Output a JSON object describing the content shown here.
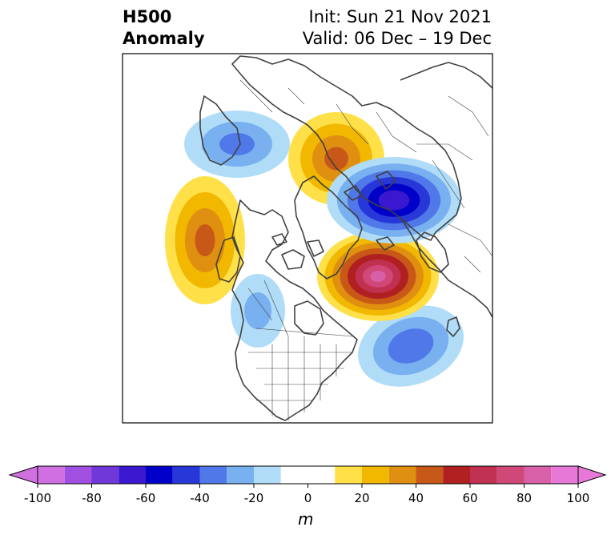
{
  "title": {
    "left_line1": "H500",
    "left_line2": "Anomaly",
    "right_line1": "Init: Sun 21 Nov 2021",
    "right_line2": "Valid: 06 Dec – 19 Dec"
  },
  "colorbar": {
    "unit": "m",
    "ticks": [
      "-100",
      "-80",
      "-60",
      "-40",
      "-20",
      "0",
      "20",
      "40",
      "60",
      "80",
      "100"
    ],
    "tick_values": [
      -100,
      -80,
      -60,
      -40,
      -20,
      0,
      20,
      40,
      60,
      80,
      100
    ],
    "range": [
      -100,
      100
    ],
    "levels": [
      -100,
      -90,
      -80,
      -70,
      -60,
      -50,
      -40,
      -30,
      -20,
      -10,
      10,
      20,
      30,
      40,
      50,
      60,
      70,
      80,
      90,
      100
    ],
    "colors": [
      "#d070e0",
      "#a050e0",
      "#7038d8",
      "#3a18d0",
      "#0000c8",
      "#2838d8",
      "#5078e8",
      "#78b0f0",
      "#b0dcf8",
      "#ffffff",
      "#ffe048",
      "#f2b800",
      "#e09010",
      "#c85818",
      "#b02020",
      "#c03050",
      "#d04878",
      "#d860a8",
      "#e878d8"
    ],
    "extend_low_color": "#d070e0",
    "extend_high_color": "#e878d8"
  },
  "anomalies": [
    {
      "name": "alaska-trough",
      "peak": -30,
      "sign": "negative"
    },
    {
      "name": "western-atlantic-low",
      "peak": -35,
      "sign": "negative"
    },
    {
      "name": "eastern-pacific-ridge",
      "peak": 40,
      "sign": "positive"
    },
    {
      "name": "north-atlantic-greenland-ridge",
      "peak": 80,
      "sign": "positive"
    },
    {
      "name": "eastern-siberia-ridge",
      "peak": 40,
      "sign": "positive"
    },
    {
      "name": "siberian-trough",
      "peak": -65,
      "sign": "negative"
    },
    {
      "name": "arctic-low",
      "peak": -20,
      "sign": "negative"
    }
  ]
}
